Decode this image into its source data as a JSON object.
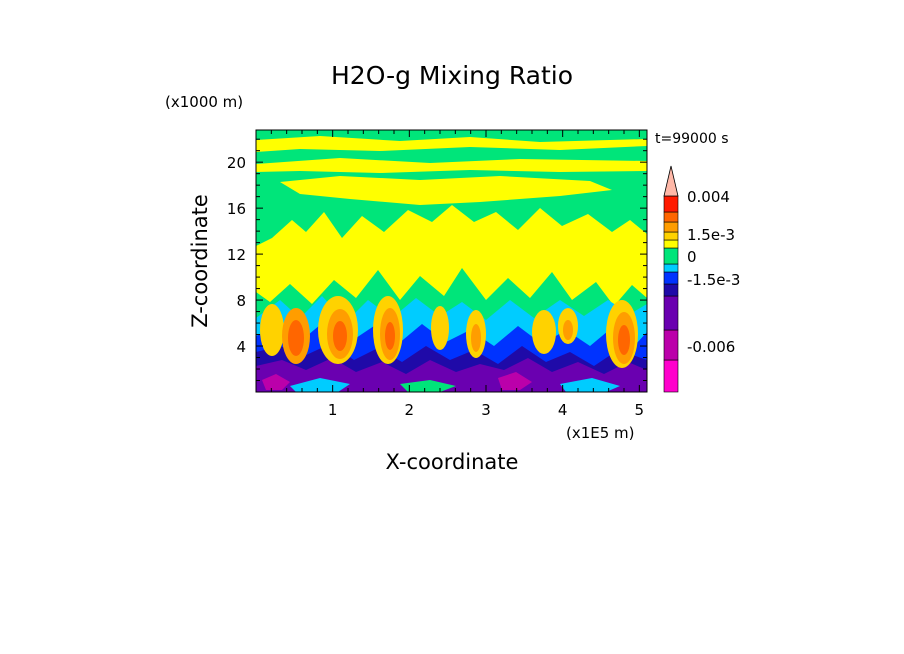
{
  "chart_data": {
    "type": "heatmap",
    "title": "H2O-g Mixing Ratio",
    "xlabel": "X-coordinate",
    "ylabel": "Z-coordinate",
    "x_unit": "(x1E5 m)",
    "y_unit": "(x1000 m)",
    "time_label": "t=99000 s",
    "xlim": [
      0,
      5.1
    ],
    "ylim": [
      0,
      22.8
    ],
    "x_ticks": [
      "1",
      "2",
      "3",
      "4",
      "5"
    ],
    "y_ticks": [
      "4",
      "8",
      "12",
      "16",
      "20"
    ],
    "grid": false,
    "legend": "right colorbar",
    "colorbar": {
      "tick_labels": [
        "0.004",
        "1.5e-3",
        "0",
        "-1.5e-3",
        "-0.006"
      ],
      "levels": [
        -0.009,
        -0.006,
        -0.003,
        -0.002,
        -0.0015,
        -0.001,
        -0.0005,
        0,
        0.0005,
        0.001,
        0.0015,
        0.002,
        0.003,
        0.004
      ],
      "colors": [
        "#ff00cc",
        "#bb00aa",
        "#6a00b0",
        "#1f0aa8",
        "#0033ff",
        "#00ccff",
        "#00e57a",
        "#ffff00",
        "#ffd200",
        "#ff9d00",
        "#ff6600",
        "#ff1a00",
        "#ff8080",
        "#ffb8a8"
      ]
    },
    "field_by_height": [
      {
        "z_range": [
          20.5,
          22.8
        ],
        "dominant": "0 / slightly positive (yellow-green bands)"
      },
      {
        "z_range": [
          13,
          20.5
        ],
        "dominant": "mostly 0 (green) with positive patches"
      },
      {
        "z_range": [
          8,
          13
        ],
        "dominant": "0 to 5e-4 (yellow)"
      },
      {
        "z_range": [
          4,
          8
        ],
        "dominant": "-5e-4 to -1e-3 (cyan/green) with positive plumes up to 2e-3"
      },
      {
        "z_range": [
          0,
          4
        ],
        "dominant": "-1.5e-3 to -0.006 (blue/purple)"
      }
    ],
    "plume_x_positions": [
      0.45,
      1.0,
      1.65,
      2.4,
      3.1,
      3.9,
      4.8
    ]
  }
}
